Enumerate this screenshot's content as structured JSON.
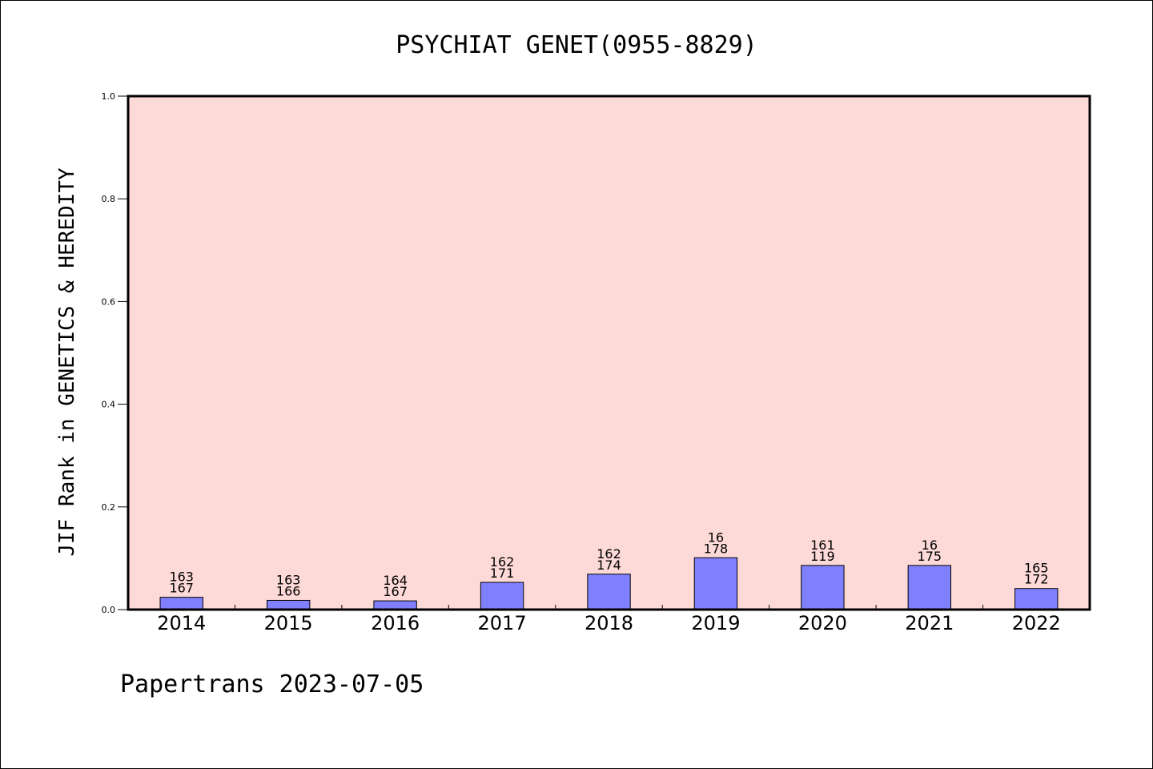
{
  "chart_data": {
    "type": "bar",
    "title": "PSYCHIAT GENET(0955-8829)",
    "ylabel": "JIF Rank in GENETICS & HEREDITY",
    "xlabel": "",
    "ylim": [
      0,
      1.0
    ],
    "yticks": [
      "0.0",
      "0.2",
      "0.4",
      "0.6",
      "0.8",
      "1.0"
    ],
    "categories": [
      "2014",
      "2015",
      "2016",
      "2017",
      "2018",
      "2019",
      "2020",
      "2021",
      "2022"
    ],
    "values": [
      0.024,
      0.018,
      0.017,
      0.053,
      0.069,
      0.101,
      0.086,
      0.086,
      0.041
    ],
    "bar_labels": [
      [
        "163",
        "167"
      ],
      [
        "163",
        "166"
      ],
      [
        "164",
        "167"
      ],
      [
        "162",
        "171"
      ],
      [
        "162",
        "174"
      ],
      [
        "16",
        "178"
      ],
      [
        "161",
        "119"
      ],
      [
        "16",
        "175"
      ],
      [
        "165",
        "172"
      ]
    ],
    "colors": {
      "plot_background": "#fddad7",
      "bar_fill": "#8080ff",
      "bar_stroke": "#000000"
    },
    "grid": false
  },
  "footer": "Papertrans 2023-07-05"
}
